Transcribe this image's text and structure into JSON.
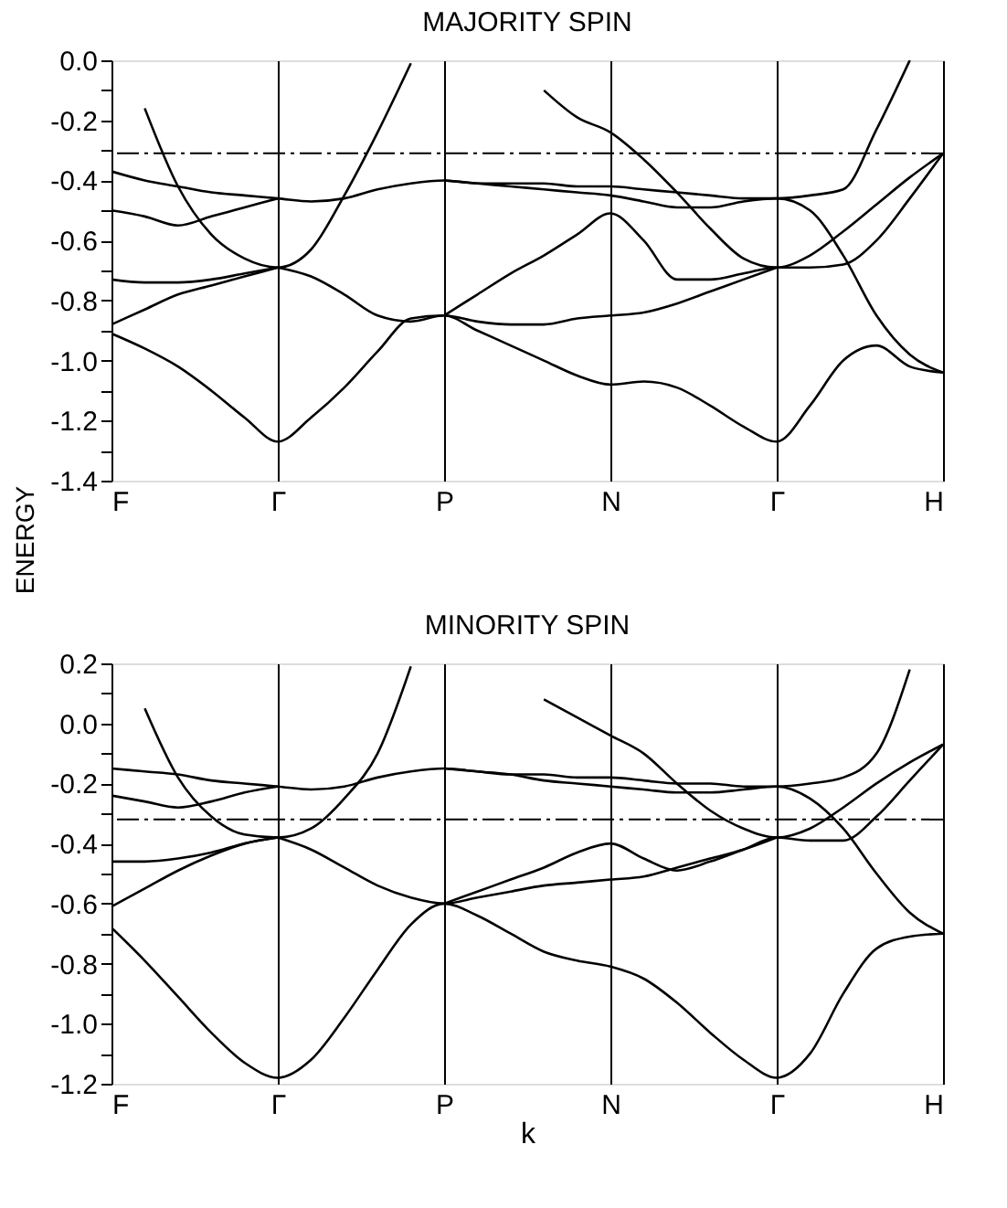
{
  "chart_data": [
    {
      "type": "line",
      "title": "MAJORITY SPIN",
      "ylabel": "ENERGY",
      "categories": [
        "F",
        null,
        null,
        null,
        null,
        "Γ",
        null,
        null,
        null,
        null,
        "P",
        null,
        null,
        null,
        null,
        "N",
        null,
        null,
        null,
        null,
        "Γ",
        null,
        null,
        null,
        null,
        "H"
      ],
      "ylim": [
        -1.4,
        0
      ],
      "yticks": [
        {
          "value": 0,
          "label": "0.0"
        },
        {
          "value": -0.1,
          "label": null
        },
        {
          "value": -0.2,
          "label": "-0.2"
        },
        {
          "value": -0.3,
          "label": null
        },
        {
          "value": -0.4,
          "label": "-0.4"
        },
        {
          "value": -0.5,
          "label": null
        },
        {
          "value": -0.6,
          "label": "-0.6"
        },
        {
          "value": -0.7,
          "label": null
        },
        {
          "value": -0.8,
          "label": "-0.8"
        },
        {
          "value": -0.9,
          "label": null
        },
        {
          "value": -1.0,
          "label": "-1.0"
        },
        {
          "value": -1.1,
          "label": null
        },
        {
          "value": -1.2,
          "label": "-1.2"
        },
        {
          "value": -1.3,
          "label": null
        },
        {
          "value": -1.4,
          "label": "-1.4"
        }
      ],
      "grid": "x",
      "ref_lines": [
        {
          "axis": "y",
          "value": -0.31,
          "line_style": "dashed",
          "color": "#000000"
        }
      ],
      "series": [
        {
          "color": "#000000",
          "values": [
            null,
            -0.16,
            -0.42,
            -0.58,
            -0.66,
            -0.69,
            -0.63,
            -0.45,
            -0.24,
            -0.01,
            null,
            null,
            null,
            null,
            null,
            null,
            null,
            null,
            null,
            null,
            null,
            null,
            null,
            null,
            null,
            null
          ]
        },
        {
          "color": "#000000",
          "values": [
            -0.37,
            -0.4,
            -0.42,
            -0.44,
            -0.45,
            -0.46,
            -0.47,
            -0.46,
            -0.43,
            -0.41,
            -0.4,
            -0.41,
            -0.41,
            -0.41,
            -0.42,
            -0.42,
            -0.43,
            -0.44,
            -0.45,
            -0.46,
            -0.46,
            -0.45,
            -0.43,
            -0.23,
            0.0,
            null
          ]
        },
        {
          "color": "#000000",
          "values": [
            -0.5,
            -0.52,
            -0.55,
            -0.52,
            -0.49,
            -0.46,
            null,
            null,
            null,
            null,
            null,
            null,
            null,
            null,
            null,
            null,
            null,
            null,
            null,
            null,
            null,
            null,
            null,
            null,
            null,
            null
          ]
        },
        {
          "color": "#000000",
          "values": [
            null,
            null,
            null,
            null,
            null,
            null,
            null,
            null,
            null,
            null,
            -0.4,
            -0.41,
            -0.42,
            -0.43,
            -0.44,
            -0.45,
            -0.47,
            -0.49,
            -0.49,
            -0.47,
            -0.46,
            -0.5,
            -0.65,
            -0.85,
            -0.98,
            -1.04
          ]
        },
        {
          "color": "#000000",
          "values": [
            null,
            null,
            null,
            null,
            null,
            null,
            null,
            null,
            null,
            null,
            null,
            null,
            null,
            -0.1,
            -0.19,
            -0.24,
            -0.33,
            -0.44,
            -0.56,
            -0.66,
            -0.69,
            -0.65,
            -0.57,
            -0.48,
            -0.39,
            -0.31
          ]
        },
        {
          "color": "#000000",
          "values": [
            null,
            null,
            null,
            null,
            null,
            null,
            null,
            null,
            null,
            null,
            -0.85,
            -0.78,
            -0.71,
            -0.65,
            -0.58,
            -0.51,
            -0.6,
            -0.73,
            -0.73,
            -0.71,
            -0.69,
            -0.69,
            -0.68,
            -0.6,
            -0.46,
            -0.31
          ]
        },
        {
          "color": "#000000",
          "values": [
            -0.73,
            -0.74,
            -0.74,
            -0.73,
            -0.71,
            -0.69,
            null,
            null,
            null,
            null,
            null,
            null,
            null,
            null,
            null,
            null,
            null,
            null,
            null,
            null,
            null,
            null,
            null,
            null,
            null,
            null
          ]
        },
        {
          "color": "#000000",
          "values": [
            -0.88,
            -0.83,
            -0.78,
            -0.75,
            -0.72,
            -0.69,
            null,
            null,
            null,
            null,
            null,
            null,
            null,
            null,
            null,
            null,
            null,
            null,
            null,
            null,
            null,
            null,
            null,
            null,
            null,
            null
          ]
        },
        {
          "color": "#000000",
          "values": [
            null,
            null,
            null,
            null,
            null,
            -0.69,
            -0.72,
            -0.78,
            -0.85,
            -0.87,
            -0.85,
            -0.87,
            -0.88,
            -0.88,
            -0.86,
            -0.85,
            -0.84,
            -0.81,
            -0.77,
            -0.73,
            -0.69,
            null,
            null,
            null,
            null,
            null
          ]
        },
        {
          "color": "#000000",
          "values": [
            -0.91,
            -0.96,
            -1.02,
            -1.1,
            -1.19,
            -1.27,
            -1.19,
            -1.09,
            -0.97,
            -0.86,
            -0.85,
            -0.9,
            -0.95,
            -1.0,
            -1.05,
            -1.08,
            -1.07,
            -1.09,
            -1.15,
            -1.22,
            -1.27,
            -1.15,
            -1.0,
            -0.95,
            -1.02,
            -1.04
          ]
        }
      ]
    },
    {
      "type": "line",
      "title": "MINORITY SPIN",
      "xlabel": "k",
      "categories": [
        "F",
        null,
        null,
        null,
        null,
        "Γ",
        null,
        null,
        null,
        null,
        "P",
        null,
        null,
        null,
        null,
        "N",
        null,
        null,
        null,
        null,
        "Γ",
        null,
        null,
        null,
        null,
        "H"
      ],
      "ylim": [
        -1.2,
        0.2
      ],
      "yticks": [
        {
          "value": 0.2,
          "label": "0.2"
        },
        {
          "value": 0.1,
          "label": null
        },
        {
          "value": 0,
          "label": "0.0"
        },
        {
          "value": -0.1,
          "label": null
        },
        {
          "value": -0.2,
          "label": "-0.2"
        },
        {
          "value": -0.3,
          "label": null
        },
        {
          "value": -0.4,
          "label": "-0.4"
        },
        {
          "value": -0.5,
          "label": null
        },
        {
          "value": -0.6,
          "label": "-0.6"
        },
        {
          "value": -0.7,
          "label": null
        },
        {
          "value": -0.8,
          "label": "-0.8"
        },
        {
          "value": -0.9,
          "label": null
        },
        {
          "value": -1.0,
          "label": "-1.0"
        },
        {
          "value": -1.1,
          "label": null
        },
        {
          "value": -1.2,
          "label": "-1.2"
        }
      ],
      "grid": "x",
      "ref_lines": [
        {
          "axis": "y",
          "value": -0.32,
          "line_style": "dashed",
          "color": "#000000"
        }
      ],
      "series": [
        {
          "color": "#000000",
          "values": [
            null,
            0.05,
            -0.18,
            -0.31,
            -0.37,
            -0.38,
            -0.35,
            -0.25,
            -0.1,
            0.19,
            null,
            null,
            null,
            null,
            null,
            null,
            null,
            null,
            null,
            null,
            null,
            null,
            null,
            null,
            null,
            null
          ]
        },
        {
          "color": "#000000",
          "values": [
            -0.15,
            -0.16,
            -0.17,
            -0.19,
            -0.2,
            -0.21,
            -0.22,
            -0.21,
            -0.18,
            -0.16,
            -0.15,
            -0.16,
            -0.17,
            -0.17,
            -0.18,
            -0.18,
            -0.19,
            -0.2,
            -0.2,
            -0.21,
            -0.21,
            -0.2,
            -0.18,
            -0.1,
            0.18,
            null
          ]
        },
        {
          "color": "#000000",
          "values": [
            -0.24,
            -0.26,
            -0.28,
            -0.26,
            -0.23,
            -0.21,
            null,
            null,
            null,
            null,
            null,
            null,
            null,
            null,
            null,
            null,
            null,
            null,
            null,
            null,
            null,
            null,
            null,
            null,
            null,
            null
          ]
        },
        {
          "color": "#000000",
          "values": [
            null,
            null,
            null,
            null,
            null,
            null,
            null,
            null,
            null,
            null,
            -0.15,
            -0.16,
            -0.17,
            -0.19,
            -0.2,
            -0.21,
            -0.22,
            -0.23,
            -0.23,
            -0.22,
            -0.21,
            -0.25,
            -0.35,
            -0.5,
            -0.63,
            -0.7
          ]
        },
        {
          "color": "#000000",
          "values": [
            null,
            null,
            null,
            null,
            null,
            null,
            null,
            null,
            null,
            null,
            null,
            null,
            null,
            0.08,
            0.02,
            -0.04,
            -0.1,
            -0.2,
            -0.29,
            -0.35,
            -0.38,
            -0.35,
            -0.28,
            -0.2,
            -0.13,
            -0.07
          ]
        },
        {
          "color": "#000000",
          "values": [
            null,
            null,
            null,
            null,
            null,
            null,
            null,
            null,
            null,
            null,
            -0.6,
            -0.56,
            -0.52,
            -0.48,
            -0.43,
            -0.4,
            -0.45,
            -0.49,
            -0.46,
            -0.42,
            -0.38,
            -0.39,
            -0.39,
            -0.31,
            -0.19,
            -0.07
          ]
        },
        {
          "color": "#000000",
          "values": [
            -0.46,
            -0.46,
            -0.45,
            -0.43,
            -0.4,
            -0.38,
            null,
            null,
            null,
            null,
            null,
            null,
            null,
            null,
            null,
            null,
            null,
            null,
            null,
            null,
            null,
            null,
            null,
            null,
            null,
            null
          ]
        },
        {
          "color": "#000000",
          "values": [
            -0.61,
            -0.55,
            -0.49,
            -0.44,
            -0.4,
            -0.38,
            null,
            null,
            null,
            null,
            null,
            null,
            null,
            null,
            null,
            null,
            null,
            null,
            null,
            null,
            null,
            null,
            null,
            null,
            null,
            null
          ]
        },
        {
          "color": "#000000",
          "values": [
            null,
            null,
            null,
            null,
            null,
            -0.38,
            -0.42,
            -0.48,
            -0.54,
            -0.58,
            -0.6,
            -0.58,
            -0.56,
            -0.54,
            -0.53,
            -0.52,
            -0.51,
            -0.48,
            -0.45,
            -0.42,
            -0.38,
            null,
            null,
            null,
            null,
            null
          ]
        },
        {
          "color": "#000000",
          "values": [
            -0.68,
            -0.79,
            -0.91,
            -1.03,
            -1.13,
            -1.18,
            -1.12,
            -0.98,
            -0.82,
            -0.67,
            -0.6,
            -0.64,
            -0.7,
            -0.76,
            -0.79,
            -0.81,
            -0.85,
            -0.93,
            -1.03,
            -1.12,
            -1.18,
            -1.1,
            -0.9,
            -0.75,
            -0.71,
            -0.7
          ]
        }
      ]
    }
  ]
}
